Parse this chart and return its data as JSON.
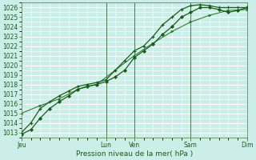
{
  "xlabel": "Pression niveau de la mer( hPa )",
  "bg_color": "#cceee8",
  "grid_color": "#ffffff",
  "line_color1": "#1a5c1a",
  "line_color2": "#1a5c1a",
  "line_color3": "#2d7a2d",
  "ylim": [
    1012.5,
    1026.5
  ],
  "yticks": [
    1013,
    1014,
    1015,
    1016,
    1017,
    1018,
    1019,
    1020,
    1021,
    1022,
    1023,
    1024,
    1025,
    1026
  ],
  "xlim": [
    0,
    96
  ],
  "xtick_positions": [
    0,
    36,
    48,
    72,
    96
  ],
  "xtick_labels": [
    "Jeu",
    "Lun",
    "Ven",
    "Sam",
    "Dim"
  ],
  "vline_positions": [
    36,
    48,
    72,
    96
  ],
  "series1_x": [
    0,
    4,
    8,
    12,
    16,
    20,
    24,
    28,
    32,
    36,
    40,
    44,
    48,
    52,
    56,
    60,
    64,
    68,
    72,
    76,
    80,
    84,
    88,
    92,
    96
  ],
  "series1_y": [
    1012.8,
    1013.3,
    1014.5,
    1015.5,
    1016.2,
    1016.8,
    1017.5,
    1017.8,
    1018.0,
    1018.3,
    1018.8,
    1019.5,
    1020.8,
    1021.5,
    1022.2,
    1023.2,
    1024.0,
    1025.0,
    1025.5,
    1026.0,
    1026.0,
    1025.8,
    1025.5,
    1025.7,
    1026.0
  ],
  "series2_x": [
    0,
    4,
    8,
    12,
    16,
    20,
    24,
    28,
    32,
    36,
    40,
    44,
    48,
    52,
    56,
    60,
    64,
    68,
    72,
    76,
    80,
    84,
    88,
    92,
    96
  ],
  "series2_y": [
    1013.0,
    1014.0,
    1015.5,
    1016.2,
    1016.8,
    1017.3,
    1017.8,
    1018.0,
    1018.2,
    1018.5,
    1019.5,
    1020.5,
    1021.5,
    1022.0,
    1023.0,
    1024.2,
    1025.0,
    1025.8,
    1026.2,
    1026.3,
    1026.2,
    1026.0,
    1026.0,
    1026.0,
    1026.0
  ],
  "series3_x": [
    0,
    8,
    16,
    24,
    32,
    40,
    48,
    56,
    64,
    72,
    80,
    88,
    96
  ],
  "series3_y": [
    1015.0,
    1015.8,
    1016.5,
    1017.5,
    1018.0,
    1019.5,
    1021.0,
    1022.3,
    1023.5,
    1024.5,
    1025.2,
    1025.7,
    1025.8
  ],
  "ylabel_fontsize": 5,
  "xlabel_fontsize": 6.5,
  "tick_fontsize": 5.5,
  "linewidth": 0.9,
  "markersize": 2.2
}
